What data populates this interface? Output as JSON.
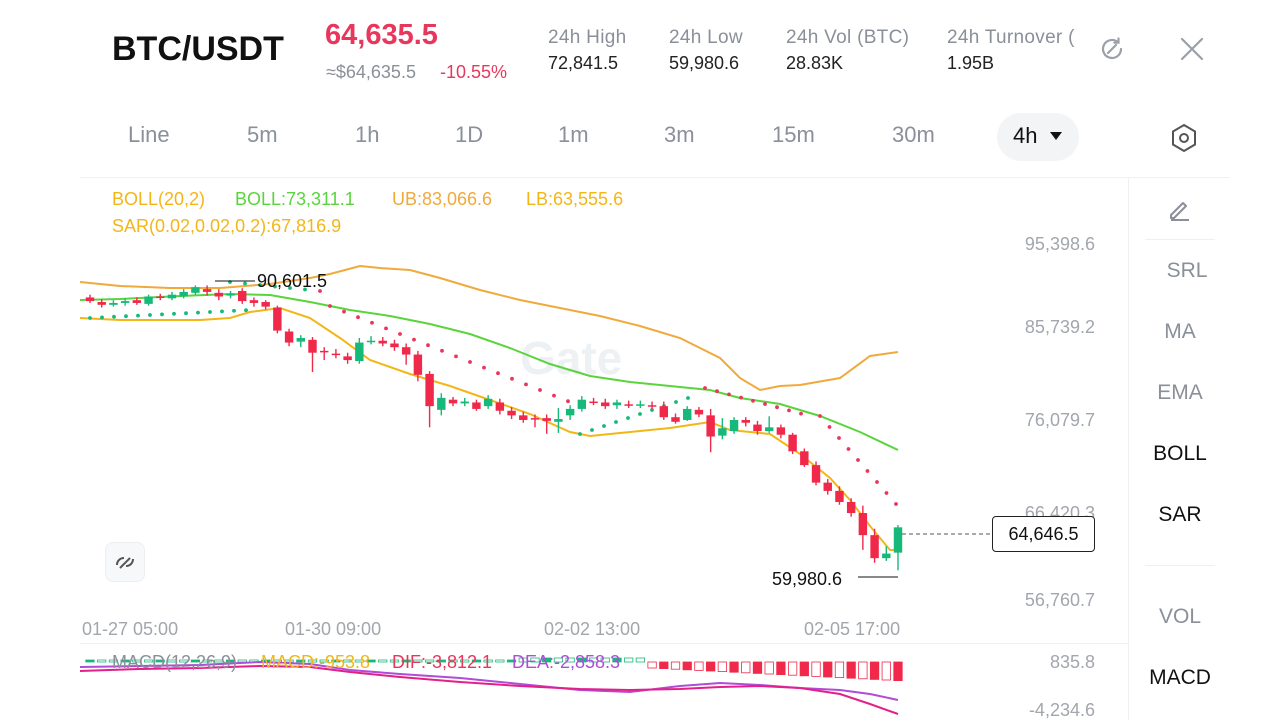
{
  "header": {
    "pair": "BTC/USDT",
    "price": "64,635.5",
    "approx": "≈$64,635.5",
    "change": "-10.55%",
    "stats": [
      {
        "label": "24h  High",
        "value": "72,841.5"
      },
      {
        "label": "24h  Low",
        "value": "59,980.6"
      },
      {
        "label": "24h  Vol (BTC)",
        "value": "28.83K"
      },
      {
        "label": "24h  Turnover (",
        "value": "1.95B"
      }
    ]
  },
  "tabs": [
    {
      "label": "Line"
    },
    {
      "label": "5m"
    },
    {
      "label": "1h"
    },
    {
      "label": "1D"
    },
    {
      "label": "1m"
    },
    {
      "label": "3m"
    },
    {
      "label": "15m"
    },
    {
      "label": "30m"
    },
    {
      "label": "4h"
    }
  ],
  "legend": {
    "boll": "BOLL(20,2)",
    "mid": "BOLL:73,311.1",
    "ub": "UB:83,066.6",
    "lb": "LB:63,555.6",
    "sar": "SAR(0.02,0.02,0.2):67,816.9"
  },
  "macd_legend": {
    "name": "MACD(12,26,9)",
    "macd": "MACD:-953.8",
    "dif": "DIF:-3,812.1",
    "dea": "DEA:-2,858.3"
  },
  "side_tools": [
    "SRL",
    "MA",
    "EMA",
    "BOLL",
    "SAR",
    "VOL",
    "MACD"
  ],
  "price_axis": [
    "95,398.6",
    "85,739.2",
    "76,079.7",
    "66,420.3",
    "56,760.7"
  ],
  "macd_axis": [
    "835.8",
    "-4,234.6"
  ],
  "time_axis": [
    "01-27 05:00",
    "01-30 09:00",
    "02-02 13:00",
    "02-05 17:00"
  ],
  "markers": {
    "high": "90,601.5",
    "low": "59,980.6",
    "last": "64,646.5"
  },
  "watermark": "Gate",
  "colors": {
    "up": "#16b979",
    "down": "#f0284a",
    "mid": "#5ad43c",
    "band": "#f0a93b",
    "lower": "#f3b617",
    "sar": "#e8365c",
    "price": "#e8365c",
    "dif": "#b04cd6",
    "dea": "#e3208a"
  },
  "chart_data": {
    "type": "candlestick",
    "ylim": [
      56760.7,
      95398.6
    ],
    "timeframe": "4h",
    "candles": [
      [
        89600,
        89200,
        89900,
        89000
      ],
      [
        89100,
        88800,
        89400,
        88500
      ],
      [
        88800,
        89000,
        89300,
        88600
      ],
      [
        89000,
        89200,
        89500,
        88700
      ],
      [
        89300,
        89000,
        89600,
        88800
      ],
      [
        88900,
        89700,
        89900,
        88700
      ],
      [
        89700,
        89600,
        90000,
        89300
      ],
      [
        89500,
        89900,
        90200,
        89300
      ],
      [
        89700,
        90200,
        90500,
        89500
      ],
      [
        90100,
        90700,
        90900,
        89900
      ],
      [
        90500,
        90200,
        90900,
        89800
      ],
      [
        90100,
        89700,
        90500,
        89300
      ],
      [
        89800,
        90000,
        90300,
        89500
      ],
      [
        90300,
        89200,
        90601.5,
        88900
      ],
      [
        89300,
        89000,
        89600,
        88600
      ],
      [
        89100,
        88600,
        89300,
        88300
      ],
      [
        88500,
        86000,
        88700,
        85700
      ],
      [
        85900,
        84700,
        86200,
        84300
      ],
      [
        84800,
        85200,
        85500,
        84200
      ],
      [
        85000,
        83600,
        85300,
        81500
      ],
      [
        83800,
        83700,
        84200,
        82800
      ],
      [
        83500,
        83400,
        84000,
        83000
      ],
      [
        83200,
        82800,
        83600,
        82400
      ],
      [
        82700,
        84700,
        85200,
        82400
      ],
      [
        84800,
        84900,
        85400,
        84500
      ],
      [
        84900,
        84600,
        85300,
        84300
      ],
      [
        84600,
        84200,
        85000,
        83800
      ],
      [
        84200,
        83400,
        84600,
        82300
      ],
      [
        83400,
        81200,
        83800,
        80500
      ],
      [
        81300,
        77800,
        81600,
        75500
      ],
      [
        77400,
        78700,
        79200,
        76800
      ],
      [
        78500,
        78100,
        78800,
        77800
      ],
      [
        78100,
        78300,
        78700,
        77800
      ],
      [
        78200,
        77500,
        78500,
        77300
      ],
      [
        77800,
        78600,
        79000,
        77500
      ],
      [
        78200,
        77300,
        78600,
        76900
      ],
      [
        77300,
        76800,
        77700,
        76400
      ],
      [
        76800,
        76300,
        77200,
        76000
      ],
      [
        76500,
        76400,
        76900,
        75500
      ],
      [
        76500,
        76200,
        76900,
        74800
      ],
      [
        76100,
        76400,
        77600,
        74900
      ],
      [
        76800,
        77500,
        77900,
        76300
      ],
      [
        77500,
        78500,
        78900,
        77200
      ],
      [
        78300,
        78200,
        78700,
        77900
      ],
      [
        78200,
        77800,
        78600,
        77500
      ],
      [
        77900,
        78200,
        78500,
        77500
      ],
      [
        78000,
        77900,
        78400,
        77600
      ],
      [
        77900,
        78000,
        78400,
        77600
      ],
      [
        77900,
        77800,
        78300,
        77500
      ],
      [
        77800,
        76600,
        78300,
        76300
      ],
      [
        76600,
        76100,
        77000,
        75900
      ],
      [
        76300,
        77500,
        77800,
        76200
      ],
      [
        77400,
        76900,
        77700,
        76600
      ],
      [
        76800,
        74500,
        77500,
        72800
      ],
      [
        74600,
        75400,
        76500,
        74200
      ],
      [
        75100,
        76300,
        76600,
        74800
      ],
      [
        76300,
        76000,
        76600,
        75600
      ],
      [
        75800,
        75100,
        76200,
        74700
      ],
      [
        75100,
        75500,
        76700,
        74900
      ],
      [
        75500,
        74700,
        75800,
        74300
      ],
      [
        74700,
        72900,
        74900,
        72600
      ],
      [
        72900,
        71400,
        73200,
        71200
      ],
      [
        71400,
        69500,
        71800,
        69200
      ],
      [
        69500,
        68600,
        69900,
        68200
      ],
      [
        68600,
        67400,
        69100,
        67100
      ],
      [
        67400,
        66200,
        67800,
        65800
      ],
      [
        66200,
        63800,
        67000,
        62200
      ],
      [
        63800,
        61300,
        64500,
        60800
      ],
      [
        61300,
        61800,
        62600,
        61000
      ],
      [
        61900,
        64646.5,
        64900,
        59980.6
      ]
    ]
  }
}
